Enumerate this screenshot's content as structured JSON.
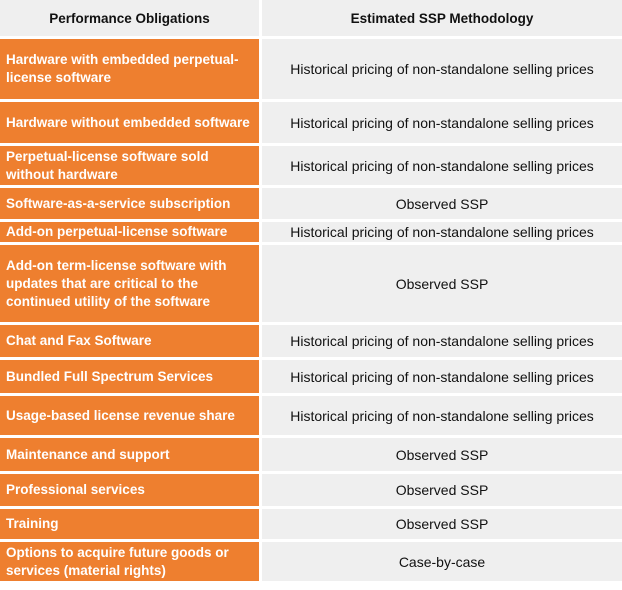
{
  "headers": {
    "obligations": "Performance Obligations",
    "methodology": "Estimated SSP Methodology"
  },
  "rows": [
    {
      "obligation": "Hardware with embedded perpetual-license software",
      "methodology": "Historical pricing of non-standalone selling prices"
    },
    {
      "obligation": "Hardware without embedded software",
      "methodology": "Historical pricing of non-standalone selling prices"
    },
    {
      "obligation": "Perpetual-license software sold without hardware",
      "methodology": "Historical pricing of non-standalone selling prices"
    },
    {
      "obligation": "Software-as-a-service subscription",
      "methodology": "Observed SSP"
    },
    {
      "obligation": "Add-on perpetual-license software",
      "methodology": "Historical pricing of non-standalone selling prices"
    },
    {
      "obligation": "Add-on term-license software with updates that are critical to the continued utility of the software",
      "methodology": "Observed SSP"
    },
    {
      "obligation": "Chat and Fax Software",
      "methodology": "Historical pricing of non-standalone selling prices"
    },
    {
      "obligation": "Bundled Full Spectrum Services",
      "methodology": "Historical pricing of non-standalone selling prices"
    },
    {
      "obligation": "Usage-based license revenue share",
      "methodology": "Historical pricing of non-standalone selling prices"
    },
    {
      "obligation": "Maintenance and support",
      "methodology": "Observed SSP"
    },
    {
      "obligation": "Professional services",
      "methodology": "Observed SSP"
    },
    {
      "obligation": "Training",
      "methodology": "Observed SSP"
    },
    {
      "obligation": "Options to acquire future goods or services (material rights)",
      "methodology": "Case-by-case"
    }
  ],
  "colors": {
    "obligation_cell": "#ee7f2f",
    "methodology_cell": "#efefef",
    "header_cell": "#efefef"
  }
}
